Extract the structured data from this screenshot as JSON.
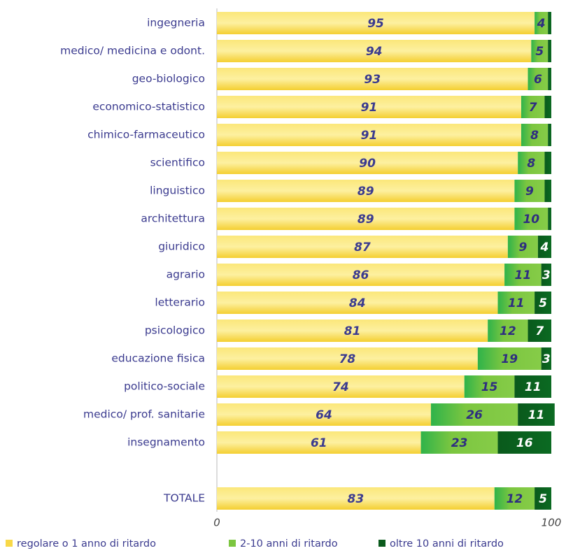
{
  "chart_data": {
    "type": "stacked-bar-horizontal",
    "categories": [
      "ingegneria",
      "medico/ medicina e odont.",
      "geo-biologico",
      "economico-statistico",
      "chimico-farmaceutico",
      "scientifico",
      "linguistico",
      "architettura",
      "giuridico",
      "agrario",
      "letterario",
      "psicologico",
      "educazione fisica",
      "politico-sociale",
      "medico/ prof. sanitarie",
      "insegnamento",
      null,
      "TOTALE"
    ],
    "series": [
      {
        "name": "regolare o 1 anno di ritardo",
        "color": "#f8d848",
        "values": [
          95,
          94,
          93,
          91,
          91,
          90,
          89,
          89,
          87,
          86,
          84,
          81,
          78,
          74,
          64,
          61,
          null,
          83
        ]
      },
      {
        "name": "2-10 anni di ritardo",
        "color": "#7cc640",
        "values": [
          4,
          5,
          6,
          7,
          8,
          8,
          9,
          10,
          9,
          11,
          11,
          12,
          19,
          15,
          26,
          23,
          null,
          12
        ]
      },
      {
        "name": "oltre 10 anni di ritardo",
        "color": "#0a5a1c",
        "values": [
          1,
          1,
          1,
          2,
          1,
          2,
          2,
          1,
          4,
          3,
          5,
          7,
          3,
          11,
          11,
          16,
          null,
          5
        ]
      }
    ],
    "xlim": [
      0,
      100
    ],
    "xticks": [
      0,
      100
    ]
  }
}
